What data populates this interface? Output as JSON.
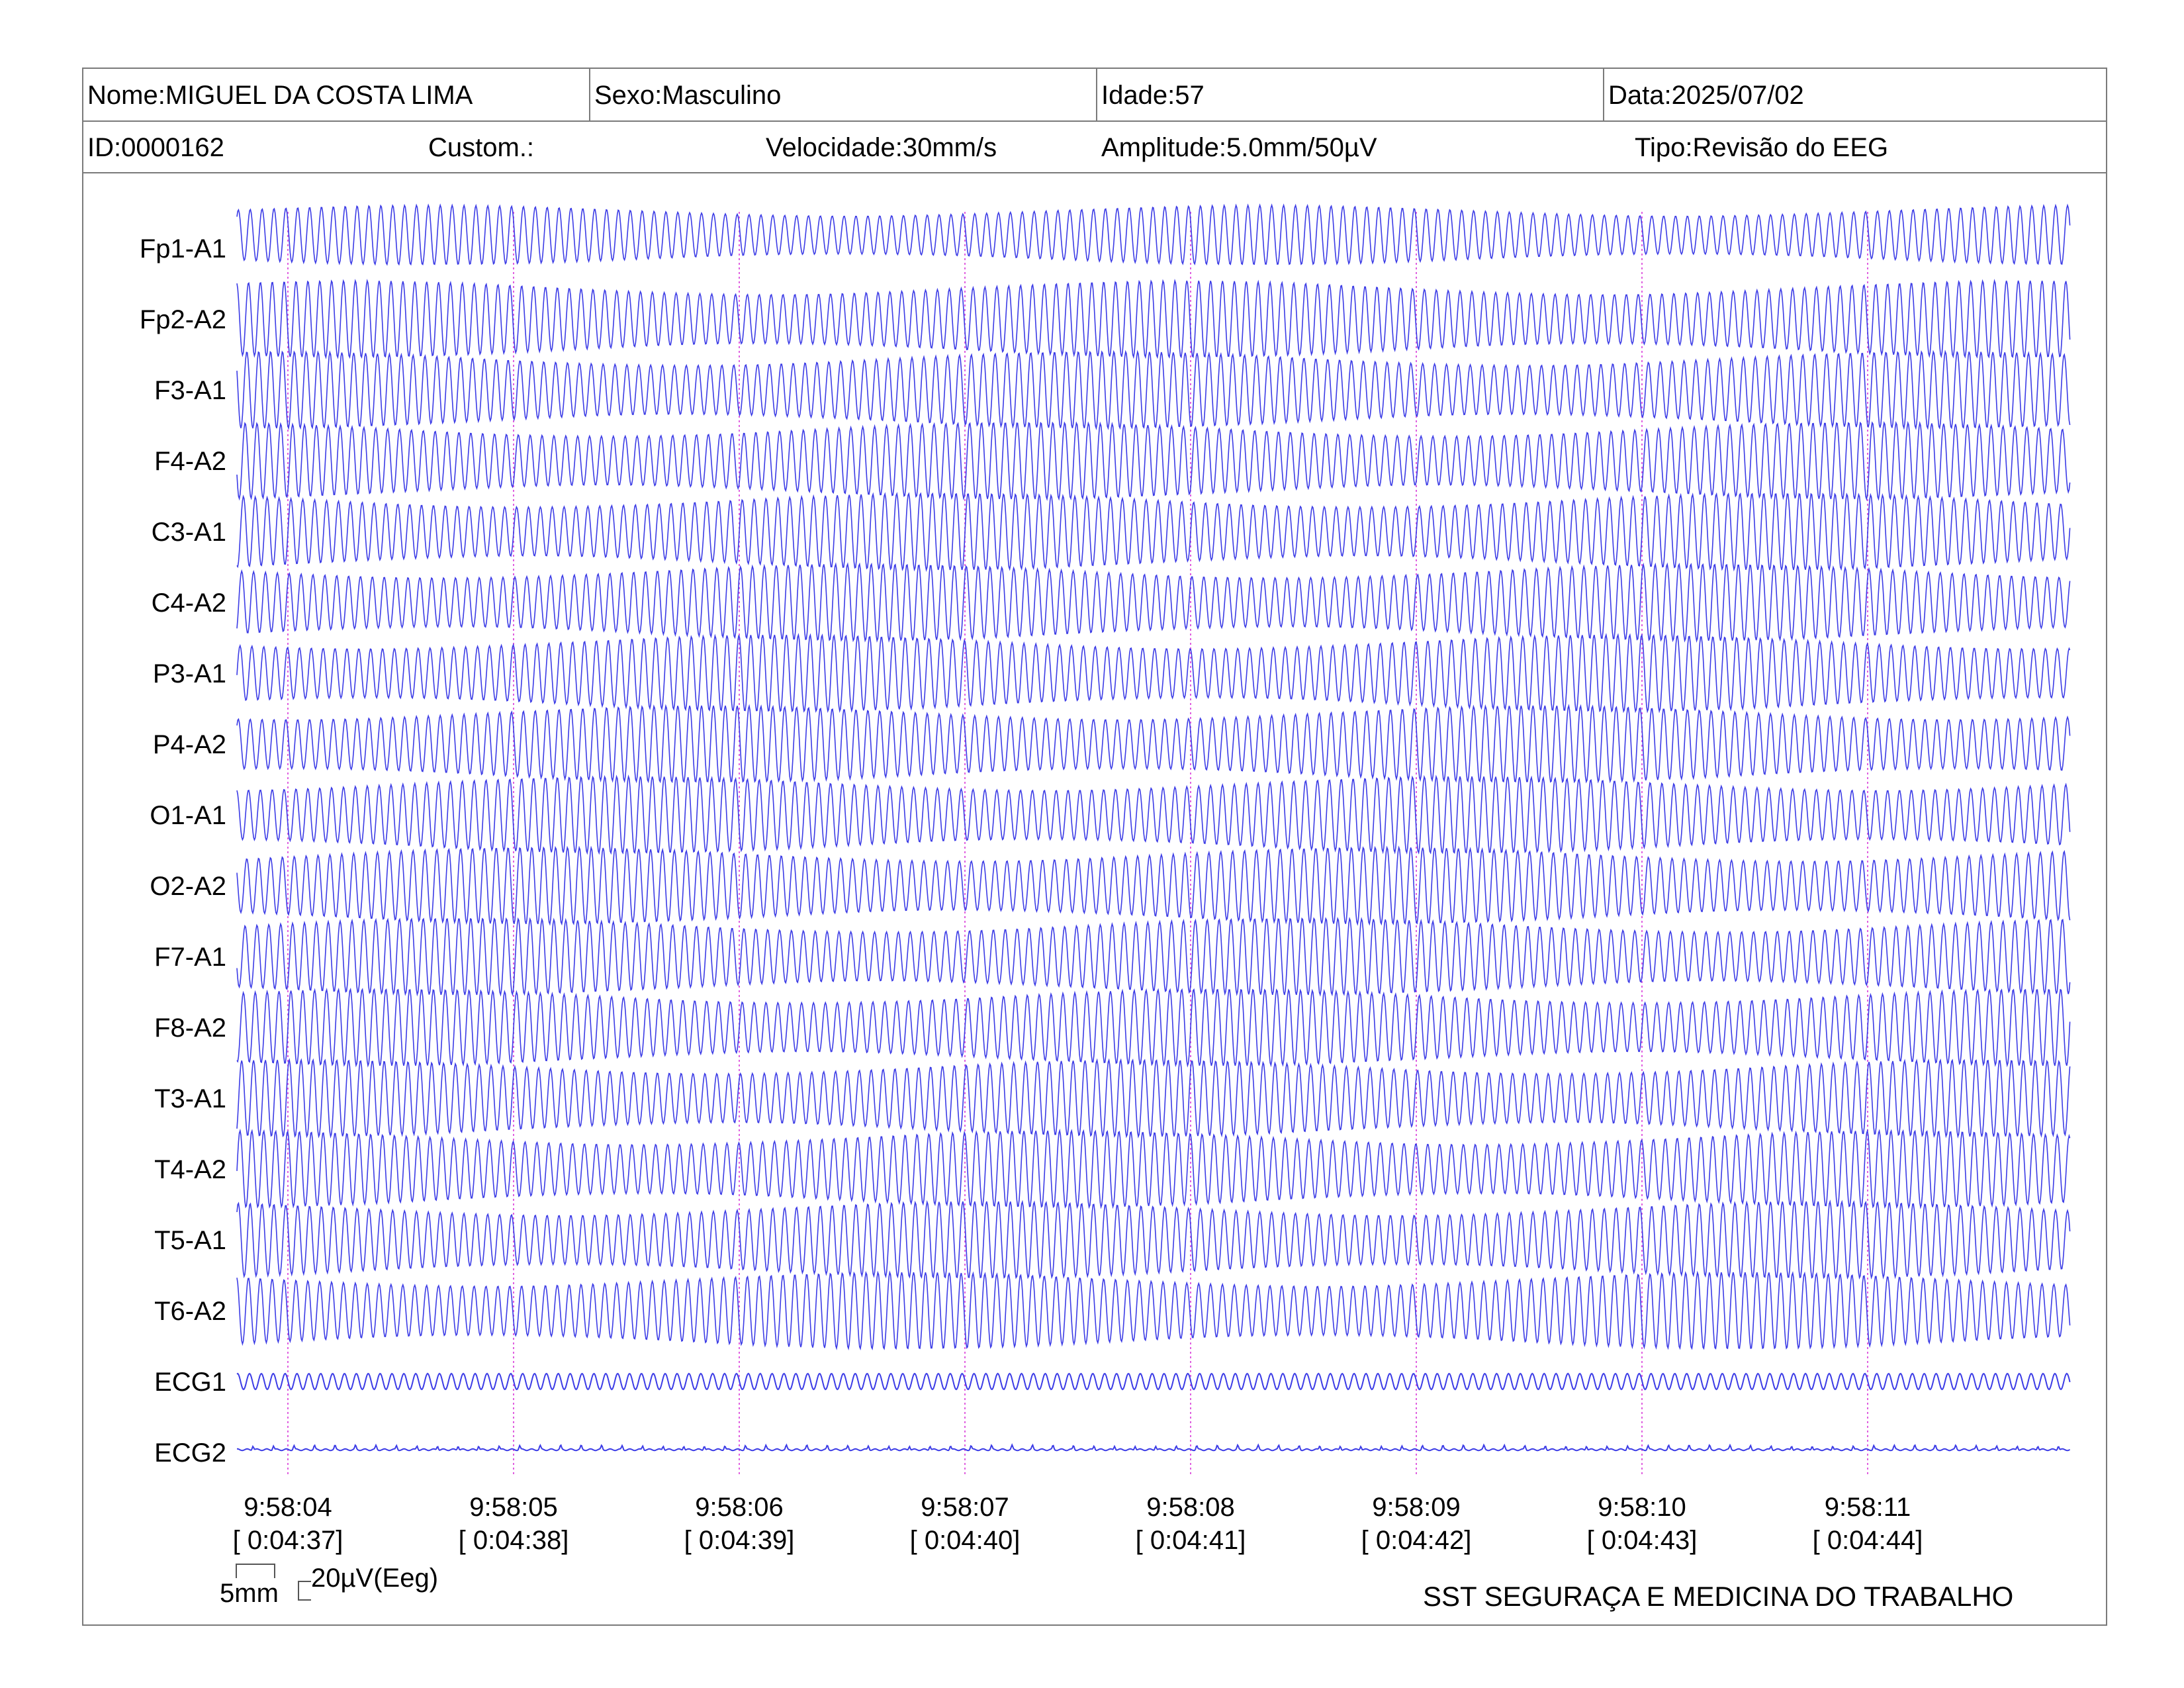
{
  "header": {
    "name": "Nome:MIGUEL DA COSTA LIMA",
    "sex": "Sexo:Masculino",
    "age": "Idade:57",
    "date": "Data:2025/07/02",
    "id": "ID:0000162",
    "custom": "Custom.:",
    "speed": "Velocidade:30mm/s",
    "amplitude": "Amplitude:5.0mm/50µV",
    "type": "Tipo:Revisão do EEG"
  },
  "scale": {
    "time_label": "5mm",
    "amp_label": "20µV(Eeg)"
  },
  "footer": {
    "company": "SST SEGURAÇA E MEDICINA DO TRABALHO"
  },
  "colors": {
    "trace": "#3c3ce6",
    "marker": "#e060e0",
    "border": "#7a7a7a"
  },
  "chart_data": {
    "type": "line",
    "channels": [
      "Fp1-A1",
      "Fp2-A2",
      "F3-A1",
      "F4-A2",
      "C3-A1",
      "C4-A2",
      "P3-A1",
      "P4-A2",
      "O1-A1",
      "O2-A2",
      "F7-A1",
      "F8-A2",
      "T3-A1",
      "T4-A2",
      "T5-A1",
      "T6-A2",
      "ECG1",
      "ECG2"
    ],
    "time_ticks": [
      "9:58:04",
      "9:58:05",
      "9:58:06",
      "9:58:07",
      "9:58:08",
      "9:58:09",
      "9:58:10",
      "9:58:11"
    ],
    "elapsed_ticks": [
      "[ 0:04:37]",
      "[ 0:04:38]",
      "[ 0:04:39]",
      "[ 0:04:40]",
      "[ 0:04:41]",
      "[ 0:04:42]",
      "[ 0:04:43]",
      "[ 0:04:44]"
    ],
    "seconds_start": 3.77,
    "seconds_end": 11.88,
    "eeg_frequency_hz": 19,
    "ecg1_frequency_hz": 19,
    "speed_mm_s": 30,
    "sensitivity": "5.0mm/50µV"
  }
}
